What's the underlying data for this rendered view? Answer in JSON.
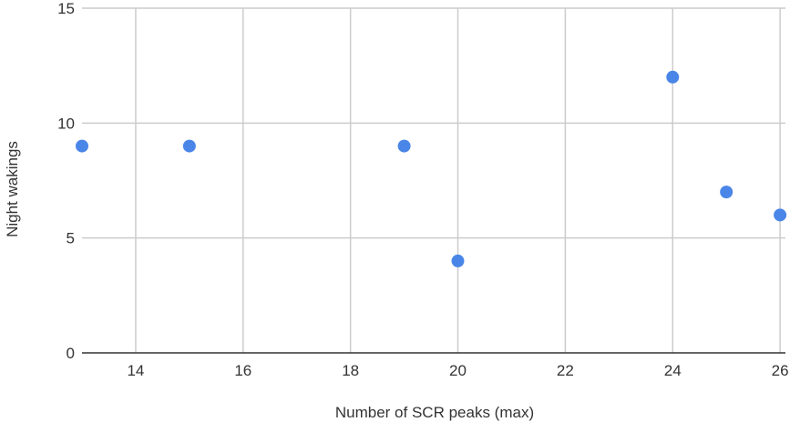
{
  "chart_data": {
    "type": "scatter",
    "title": "",
    "xlabel": "Number of SCR peaks (max)",
    "ylabel": "Night wakings",
    "xlim": [
      13,
      26.1
    ],
    "ylim": [
      0,
      15
    ],
    "x_ticks": [
      {
        "value": 14,
        "label": "14"
      },
      {
        "value": 16,
        "label": "16"
      },
      {
        "value": 18,
        "label": "18"
      },
      {
        "value": 20,
        "label": "20"
      },
      {
        "value": 22,
        "label": "22"
      },
      {
        "value": 24,
        "label": "24"
      },
      {
        "value": 26,
        "label": "26"
      }
    ],
    "y_ticks": [
      {
        "value": 0,
        "label": "0"
      },
      {
        "value": 5,
        "label": "5"
      },
      {
        "value": 10,
        "label": "10"
      },
      {
        "value": 15,
        "label": "15"
      }
    ],
    "grid": true,
    "legend": "none",
    "series": [
      {
        "points": [
          {
            "x": 13,
            "y": 9
          },
          {
            "x": 15,
            "y": 9
          },
          {
            "x": 19,
            "y": 9
          },
          {
            "x": 20,
            "y": 4
          },
          {
            "x": 24,
            "y": 12
          },
          {
            "x": 25,
            "y": 7
          },
          {
            "x": 26,
            "y": 6
          }
        ]
      }
    ],
    "colors": {
      "point": "#4a86e8",
      "grid": "#cccccc",
      "baseline": "#333333"
    }
  }
}
